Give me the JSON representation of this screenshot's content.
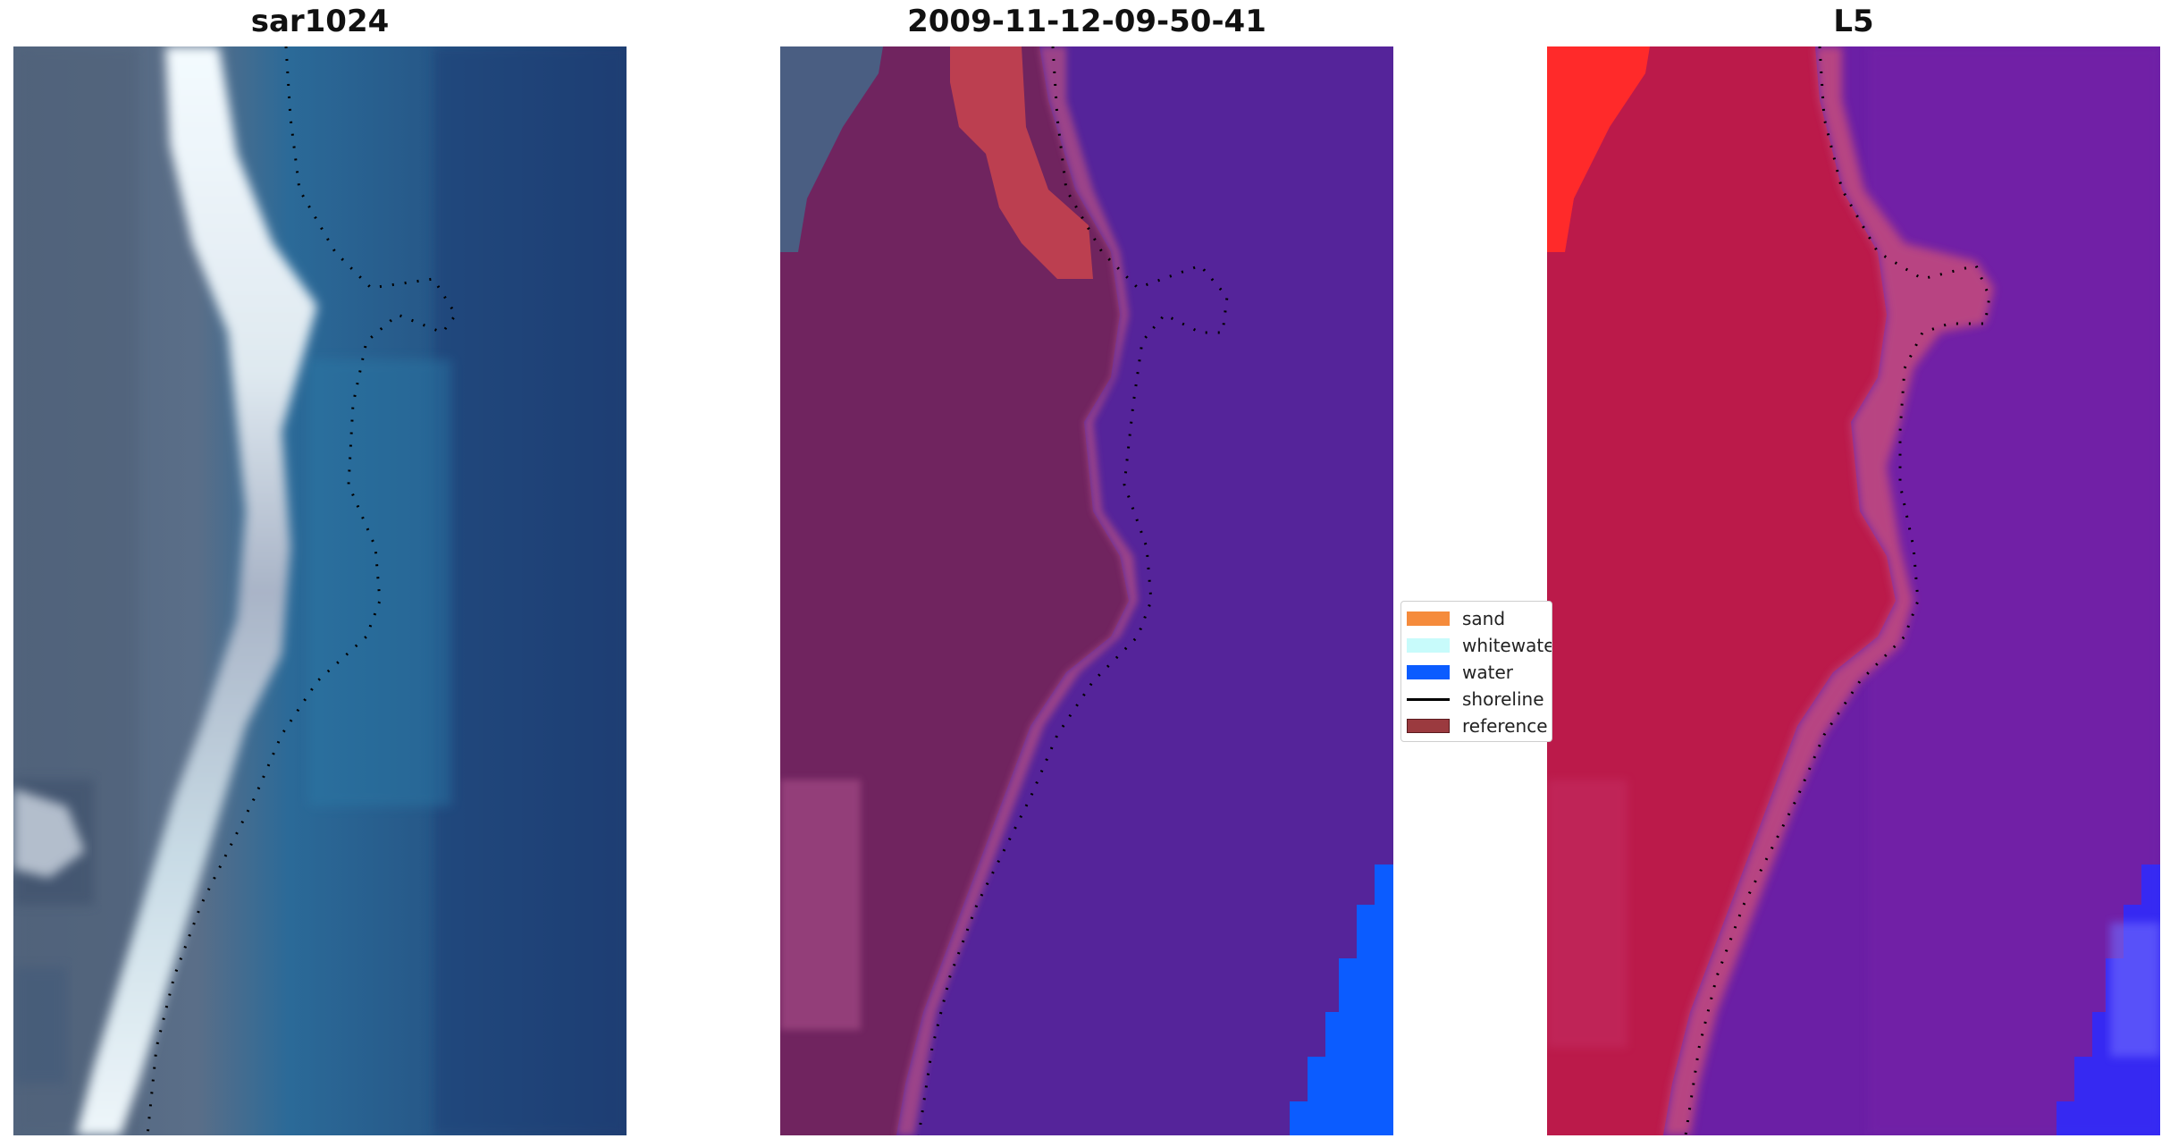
{
  "panels": [
    {
      "title": "sar1024"
    },
    {
      "title": "2009-11-12-09-50-41"
    },
    {
      "title": "L5"
    }
  ],
  "legend": {
    "items": [
      {
        "label": "sand",
        "color": "#f58b3c",
        "kind": "patch"
      },
      {
        "label": "whitewater",
        "color": "#c8fbfb",
        "kind": "patch"
      },
      {
        "label": "water",
        "color": "#0b5cff",
        "kind": "patch"
      },
      {
        "label": "shoreline",
        "color": "#000000",
        "kind": "line"
      },
      {
        "label": "reference",
        "color": "#9b3a3f",
        "kind": "patch"
      }
    ]
  },
  "colors": {
    "rgb_land": "#5a6f8a",
    "rgb_surf": "#e6f0f5",
    "rgb_water": "#245a95",
    "classified_land": "#70245f",
    "classified_water": "#55249a",
    "classified_sand_tint": "#c4434f",
    "l5_land": "#bb1a4a",
    "l5_water": "#6b1fa5",
    "l5_red_corner": "#ff2a2a",
    "water_blue": "#0b5cff",
    "shoreline": "#000000"
  }
}
